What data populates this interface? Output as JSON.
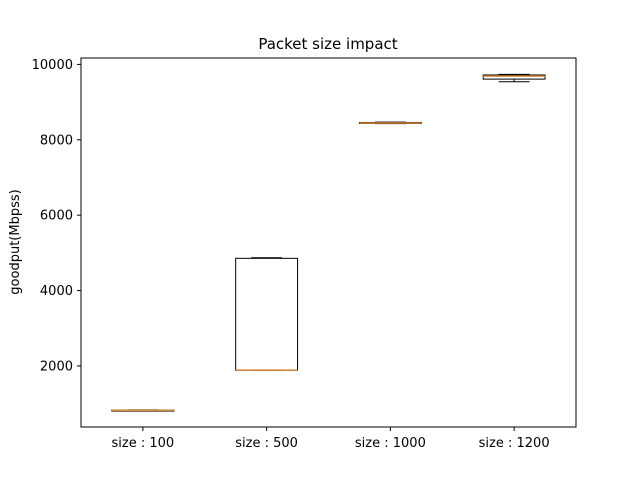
{
  "chart_data": {
    "type": "box",
    "title": "Packet size impact",
    "xlabel": "",
    "ylabel": "goodput(Mbpss)",
    "ylim": [
      380,
      10170
    ],
    "yticks": [
      2000,
      4000,
      6000,
      8000,
      10000
    ],
    "categories": [
      "size : 100",
      "size : 500",
      "size : 1000",
      "size : 1200"
    ],
    "boxes": [
      {
        "whislo": 805,
        "q1": 812,
        "med": 820,
        "q3": 828,
        "whishi": 835
      },
      {
        "whislo": 1880,
        "q1": 1885,
        "med": 1890,
        "q3": 4855,
        "whishi": 4870
      },
      {
        "whislo": 8430,
        "q1": 8435,
        "med": 8445,
        "q3": 8460,
        "whishi": 8470
      },
      {
        "whislo": 9540,
        "q1": 9610,
        "med": 9690,
        "q3": 9720,
        "whishi": 9735
      }
    ],
    "grid": false,
    "colors": {
      "box": "#000000",
      "median": "#d98c3a",
      "background": "#ffffff"
    }
  }
}
